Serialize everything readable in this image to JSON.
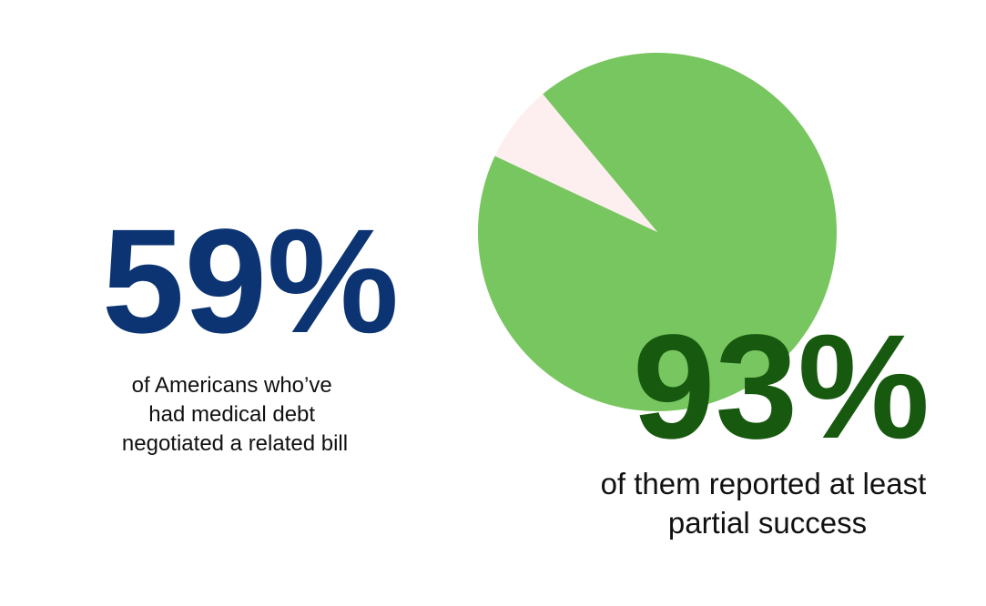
{
  "stats": [
    {
      "figure": "59%",
      "caption": [
        "of Americans who’ve",
        "had medical debt",
        "negotiated a related bill"
      ]
    },
    {
      "figure": "93%",
      "caption": [
        "of them reported at least",
        "partial success"
      ]
    }
  ],
  "chart_data": {
    "type": "pie",
    "values": [
      93,
      7
    ],
    "colors": [
      "#78c660",
      "#fdeff0"
    ]
  }
}
